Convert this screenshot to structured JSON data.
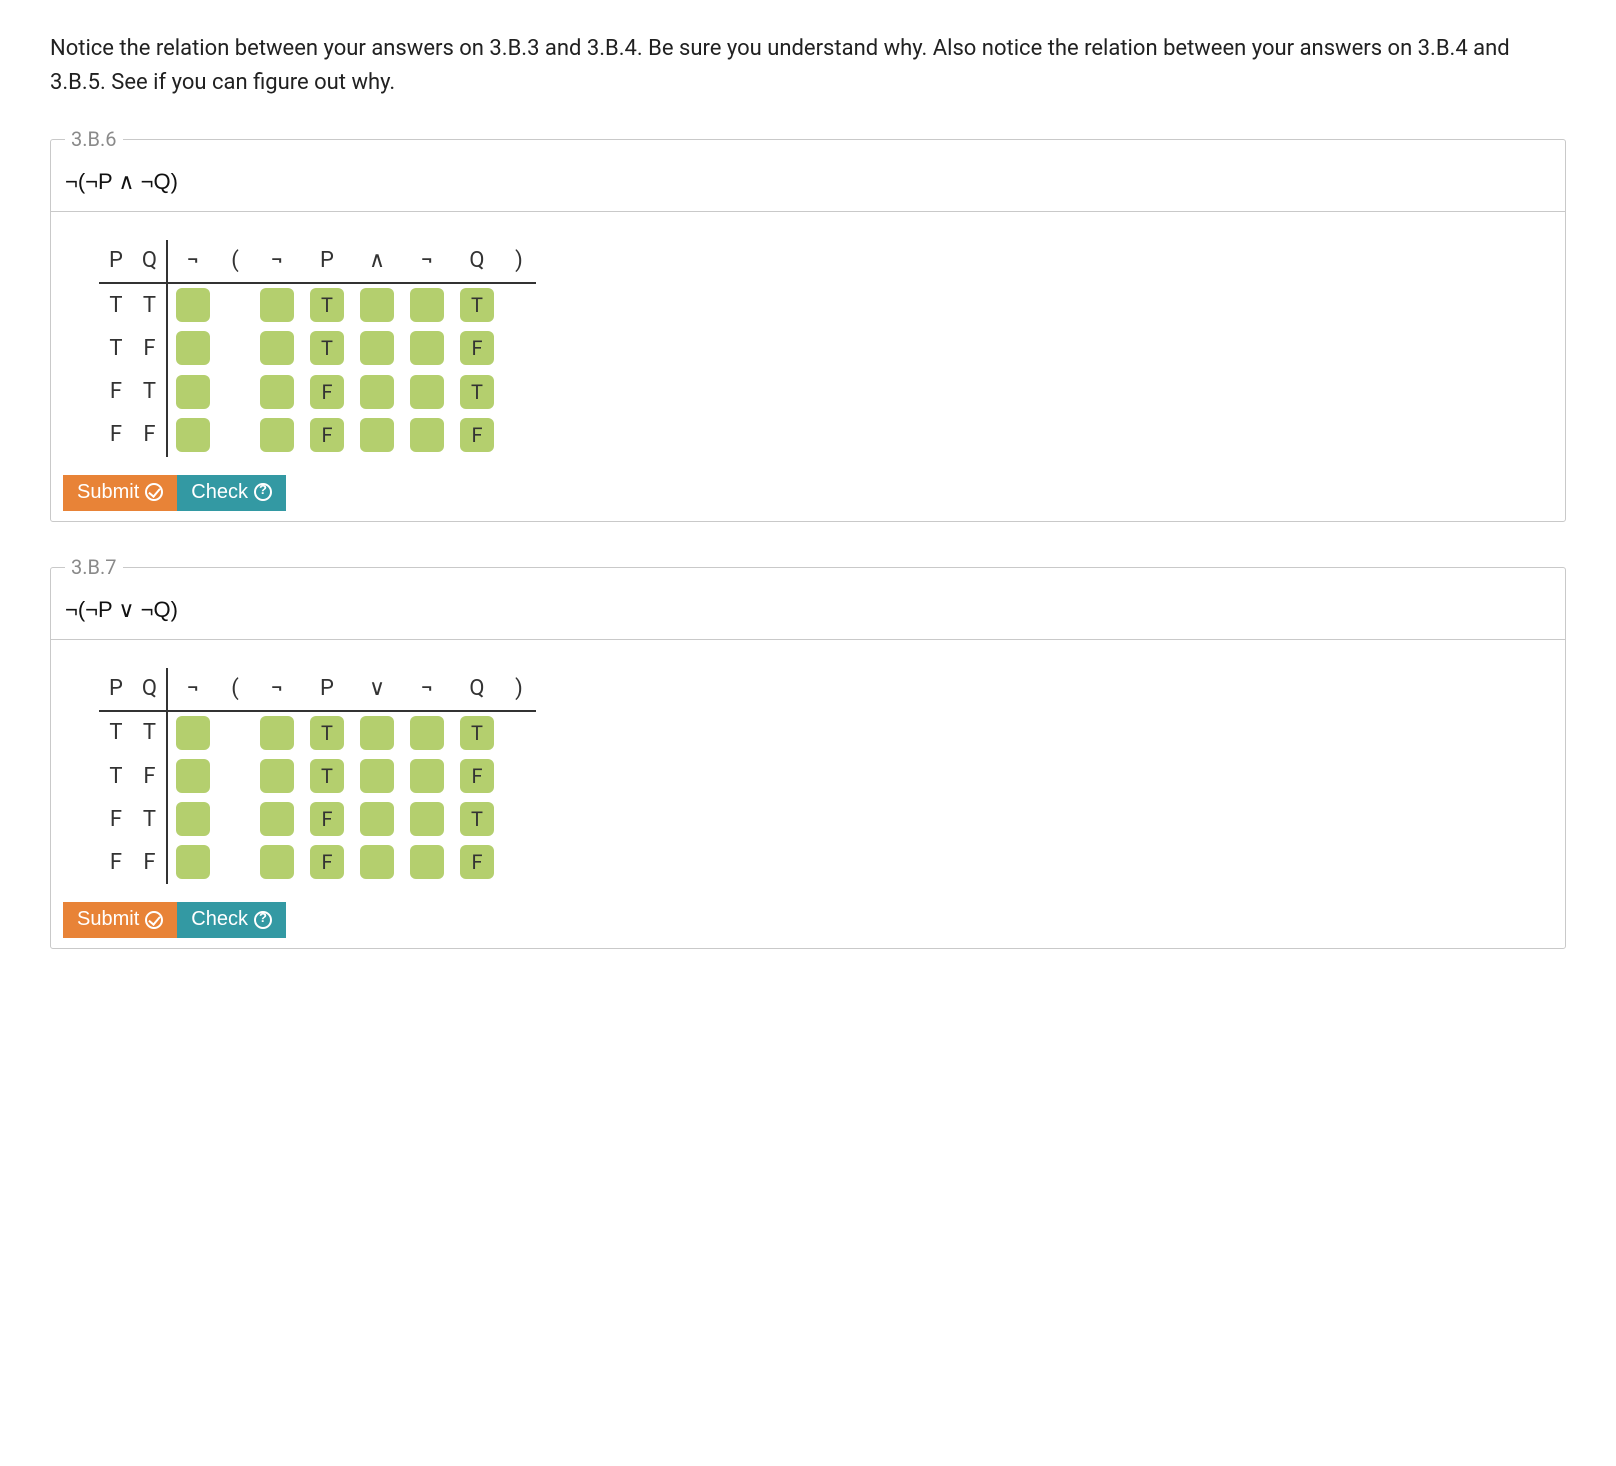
{
  "intro": "Notice the relation between your answers on 3.B.3 and 3.B.4. Be sure you understand why. Also notice the relation between your answers on 3.B.4 and 3.B.5. See if you can figure out why.",
  "exercises": [
    {
      "legend": "3.B.6",
      "formula": "¬(¬P ∧ ¬Q)",
      "header_left": [
        "P",
        "Q"
      ],
      "header_right": [
        "¬",
        "(",
        "¬",
        "P",
        "∧",
        "¬",
        "Q",
        ")"
      ],
      "cell_indices_with_box": [
        0,
        2,
        3,
        4,
        5,
        6
      ],
      "fixed_text_columns": {
        "3": "P_col",
        "6": "Q_col"
      },
      "rows": [
        {
          "left": [
            "T",
            "T"
          ],
          "P_col": "T",
          "Q_col": "T"
        },
        {
          "left": [
            "T",
            "F"
          ],
          "P_col": "T",
          "Q_col": "F"
        },
        {
          "left": [
            "F",
            "T"
          ],
          "P_col": "F",
          "Q_col": "T"
        },
        {
          "left": [
            "F",
            "F"
          ],
          "P_col": "F",
          "Q_col": "F"
        }
      ]
    },
    {
      "legend": "3.B.7",
      "formula": "¬(¬P ∨ ¬Q)",
      "header_left": [
        "P",
        "Q"
      ],
      "header_right": [
        "¬",
        "(",
        "¬",
        "P",
        "∨",
        "¬",
        "Q",
        ")"
      ],
      "cell_indices_with_box": [
        0,
        2,
        3,
        4,
        5,
        6
      ],
      "fixed_text_columns": {
        "3": "P_col",
        "6": "Q_col"
      },
      "rows": [
        {
          "left": [
            "T",
            "T"
          ],
          "P_col": "T",
          "Q_col": "T"
        },
        {
          "left": [
            "T",
            "F"
          ],
          "P_col": "T",
          "Q_col": "F"
        },
        {
          "left": [
            "F",
            "T"
          ],
          "P_col": "F",
          "Q_col": "T"
        },
        {
          "left": [
            "F",
            "F"
          ],
          "P_col": "F",
          "Q_col": "F"
        }
      ]
    }
  ],
  "buttons": {
    "submit": "Submit",
    "check": "Check"
  },
  "colors": {
    "cell_bg": "#b4cf6e",
    "submit_bg": "#e88337",
    "check_bg": "#3399a3",
    "border": "#c9c9c9",
    "legend": "#8a8a8a"
  }
}
